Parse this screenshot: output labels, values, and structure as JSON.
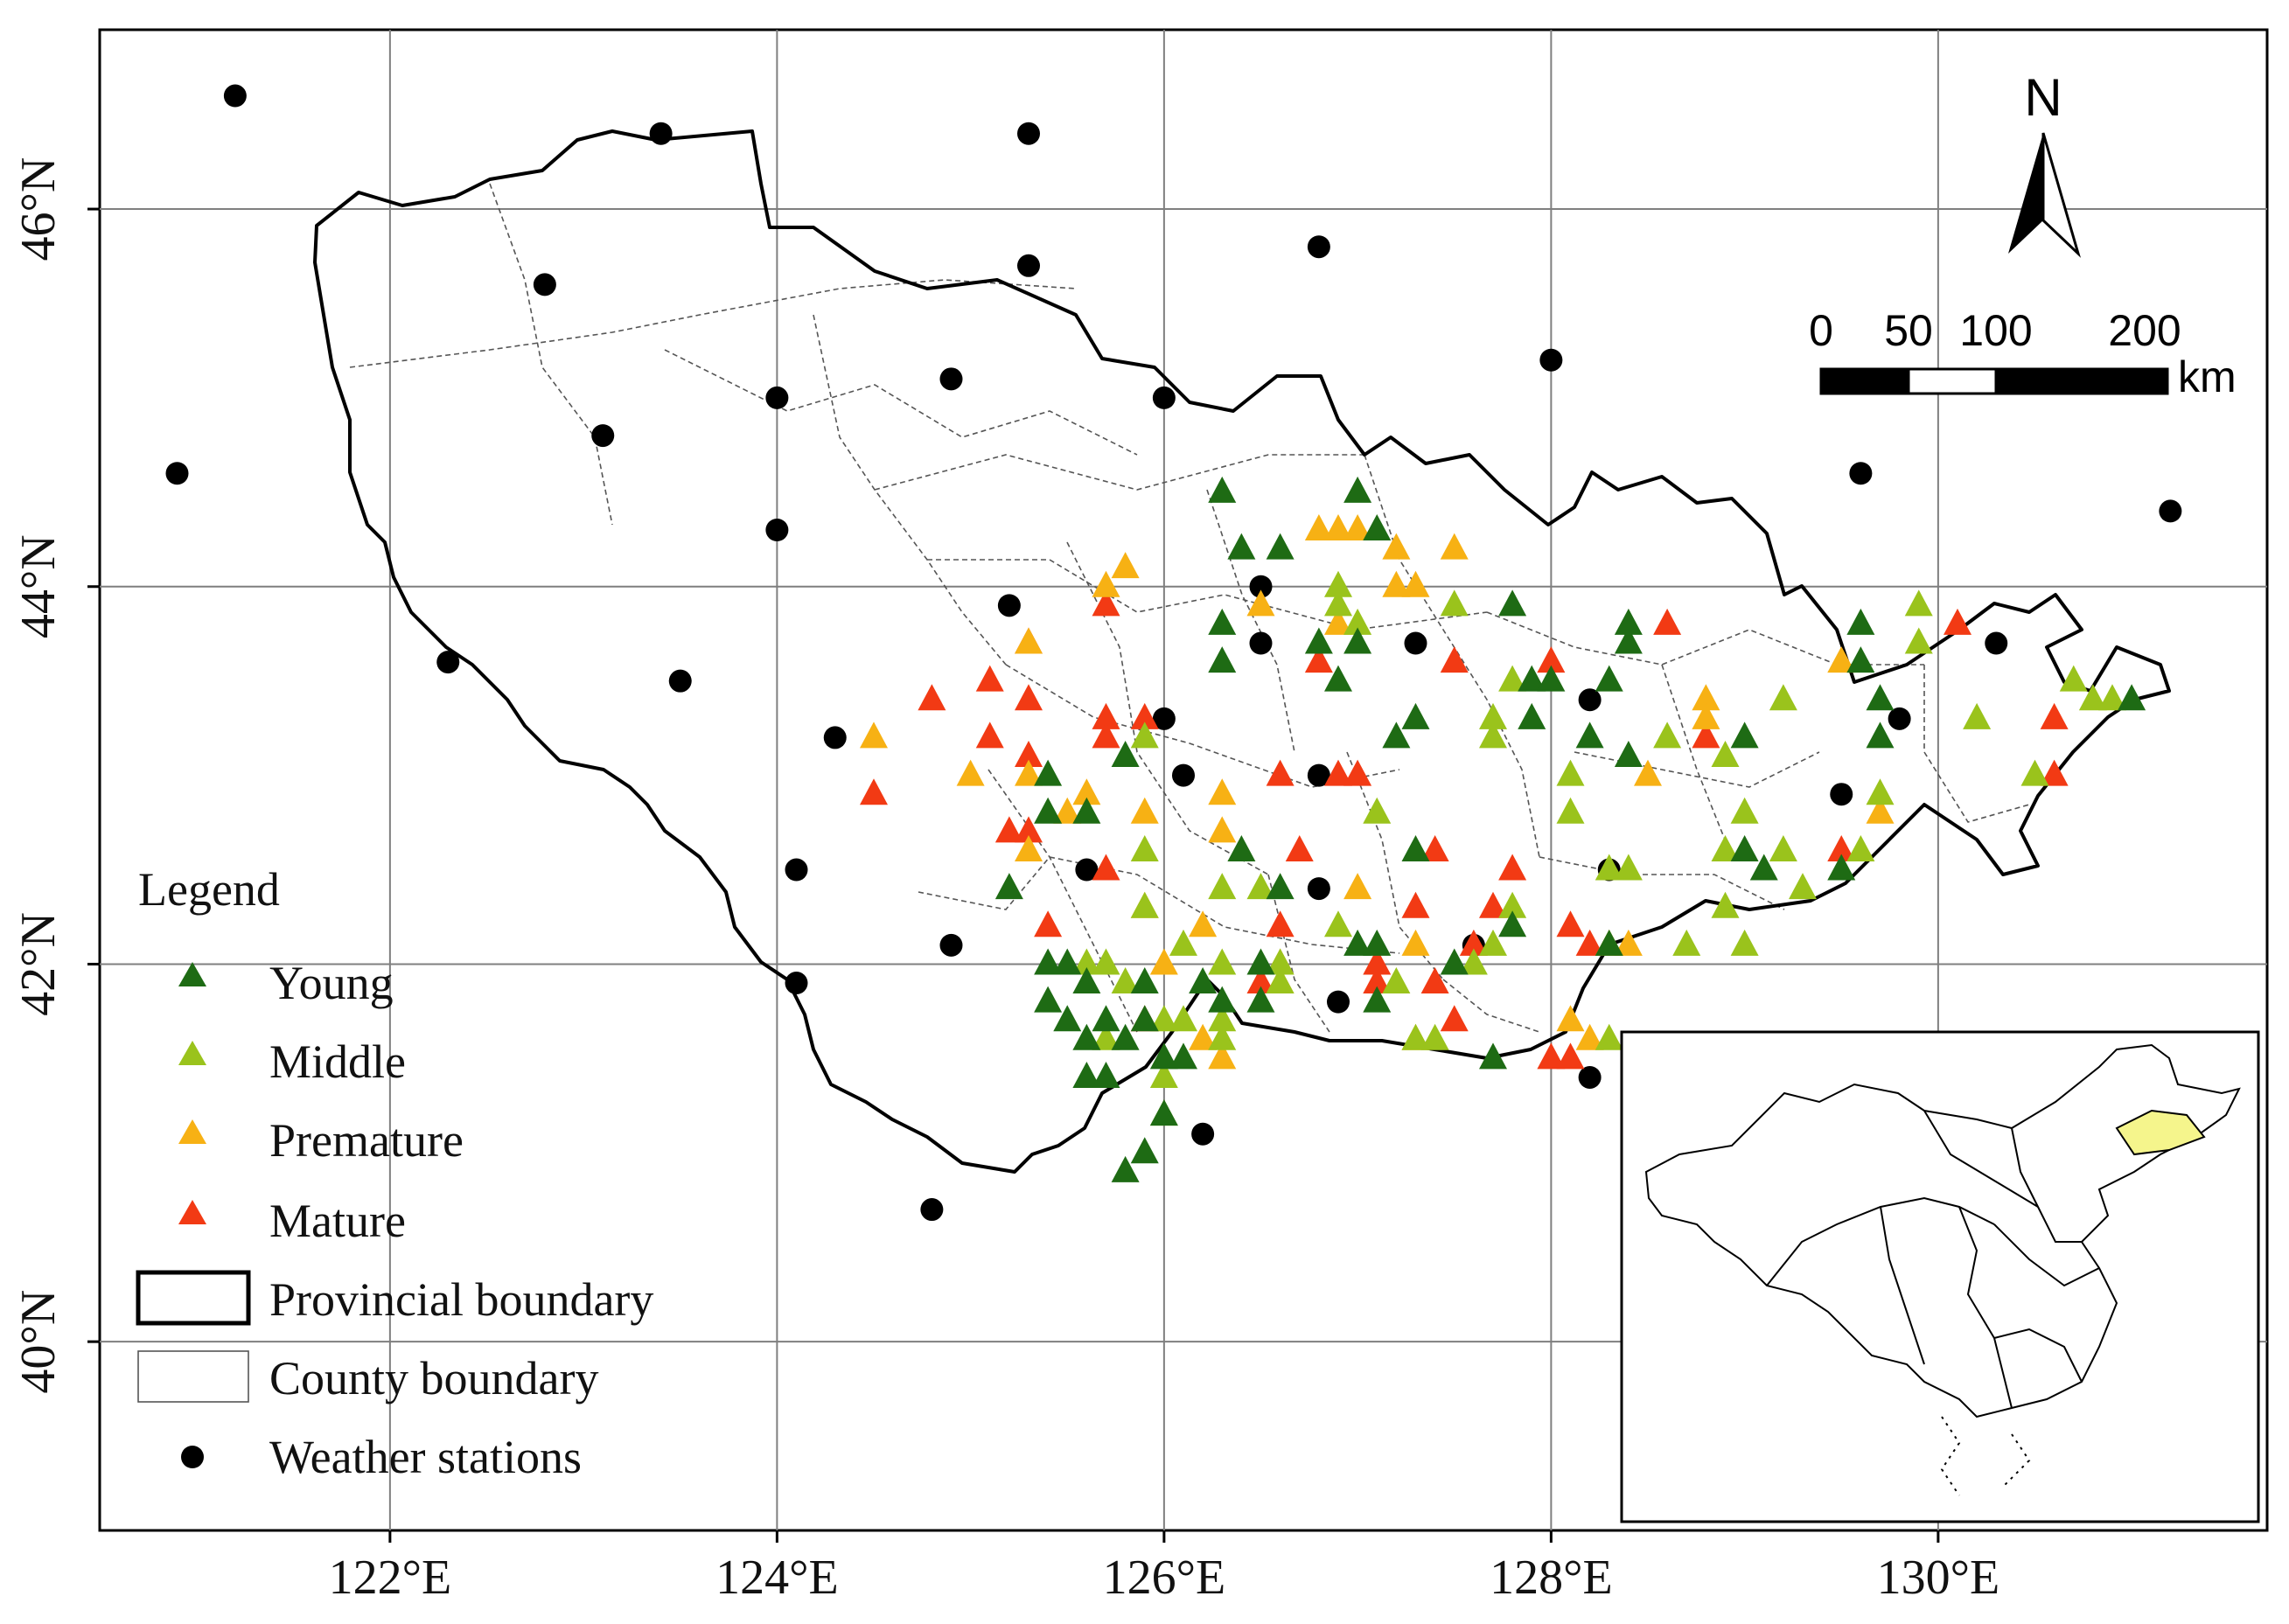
{
  "map": {
    "x_ticks": [
      "122°E",
      "124°E",
      "126°E",
      "128°E",
      "130°E"
    ],
    "y_ticks": [
      "46°N",
      "44°N",
      "42°N",
      "40°N"
    ],
    "lon_values": [
      122,
      124,
      126,
      128,
      130
    ],
    "lat_values": [
      46,
      44,
      42,
      40
    ],
    "lon_range": [
      120.5,
      131.7
    ],
    "lat_range": [
      39.0,
      46.95
    ],
    "grid": true
  },
  "legend": {
    "title": "Legend",
    "items": [
      {
        "label": "Young",
        "symbol": "triangle",
        "color": "#1e6b14"
      },
      {
        "label": "Middle",
        "symbol": "triangle",
        "color": "#9ac31c"
      },
      {
        "label": "Premature",
        "symbol": "triangle",
        "color": "#f7b114"
      },
      {
        "label": "Mature",
        "symbol": "triangle",
        "color": "#f23a14"
      },
      {
        "label": "Provincial boundary",
        "symbol": "thick-rect"
      },
      {
        "label": "County boundary",
        "symbol": "thin-rect"
      },
      {
        "label": "Weather stations",
        "symbol": "dot",
        "color": "#000000"
      }
    ]
  },
  "north_arrow": {
    "label": "N",
    "icon": "north-arrow-icon"
  },
  "scale_bar": {
    "labels": [
      "0",
      "50",
      "100",
      "200"
    ],
    "unit": "km"
  },
  "inset": {
    "icon": "china-outline-icon",
    "highlight_color": "#f5f58c"
  },
  "chart_data": {
    "type": "scatter",
    "title": "",
    "xlabel": "",
    "ylabel": "",
    "xlim": [
      120.5,
      131.7
    ],
    "ylim": [
      39.0,
      46.95
    ],
    "series": [
      {
        "name": "Weather stations",
        "color": "#000000",
        "points": [
          [
            121.2,
            46.6
          ],
          [
            123.4,
            46.4
          ],
          [
            125.3,
            46.4
          ],
          [
            122.8,
            45.6
          ],
          [
            125.3,
            45.7
          ],
          [
            126.8,
            45.8
          ],
          [
            120.9,
            44.6
          ],
          [
            123.1,
            44.8
          ],
          [
            124.0,
            45.0
          ],
          [
            124.9,
            45.1
          ],
          [
            126.0,
            45.0
          ],
          [
            128.0,
            45.2
          ],
          [
            129.6,
            44.6
          ],
          [
            131.2,
            44.4
          ],
          [
            124.0,
            44.3
          ],
          [
            122.3,
            43.6
          ],
          [
            123.5,
            43.5
          ],
          [
            125.2,
            43.9
          ],
          [
            126.5,
            44.0
          ],
          [
            126.5,
            43.7
          ],
          [
            127.3,
            43.7
          ],
          [
            130.3,
            43.7
          ],
          [
            124.3,
            43.2
          ],
          [
            126.0,
            43.3
          ],
          [
            126.1,
            43.0
          ],
          [
            126.8,
            43.0
          ],
          [
            128.2,
            43.4
          ],
          [
            129.8,
            43.3
          ],
          [
            129.5,
            42.9
          ],
          [
            124.1,
            42.5
          ],
          [
            125.6,
            42.5
          ],
          [
            126.8,
            42.4
          ],
          [
            128.3,
            42.5
          ],
          [
            124.9,
            42.1
          ],
          [
            127.6,
            42.1
          ],
          [
            124.1,
            41.9
          ],
          [
            126.9,
            41.8
          ],
          [
            128.2,
            41.4
          ],
          [
            126.2,
            41.1
          ],
          [
            124.8,
            40.7
          ]
        ]
      },
      {
        "name": "Young",
        "color": "#1e6b14",
        "points": [
          [
            126.3,
            44.5
          ],
          [
            127.0,
            44.5
          ],
          [
            127.1,
            44.3
          ],
          [
            126.4,
            44.2
          ],
          [
            126.6,
            44.2
          ],
          [
            126.3,
            43.8
          ],
          [
            126.3,
            43.6
          ],
          [
            126.8,
            43.7
          ],
          [
            127.0,
            43.7
          ],
          [
            127.8,
            43.9
          ],
          [
            126.9,
            43.5
          ],
          [
            127.3,
            43.3
          ],
          [
            127.2,
            43.2
          ],
          [
            128.4,
            43.8
          ],
          [
            128.4,
            43.7
          ],
          [
            128.3,
            43.5
          ],
          [
            128.2,
            43.2
          ],
          [
            128.4,
            43.1
          ],
          [
            127.9,
            43.5
          ],
          [
            127.9,
            43.3
          ],
          [
            128.0,
            43.5
          ],
          [
            129.7,
            43.2
          ],
          [
            129.6,
            43.8
          ],
          [
            129.6,
            43.6
          ],
          [
            129.7,
            43.4
          ],
          [
            129.0,
            43.2
          ],
          [
            131.0,
            43.4
          ],
          [
            125.2,
            42.4
          ],
          [
            125.4,
            42.0
          ],
          [
            125.5,
            42.0
          ],
          [
            125.6,
            41.9
          ],
          [
            125.4,
            41.8
          ],
          [
            125.5,
            41.7
          ],
          [
            125.6,
            41.6
          ],
          [
            125.7,
            41.7
          ],
          [
            125.9,
            41.9
          ],
          [
            125.9,
            41.7
          ],
          [
            125.8,
            41.6
          ],
          [
            126.0,
            41.5
          ],
          [
            126.1,
            41.5
          ],
          [
            125.6,
            41.4
          ],
          [
            125.7,
            41.4
          ],
          [
            126.0,
            41.2
          ],
          [
            125.9,
            41.0
          ],
          [
            125.8,
            40.9
          ],
          [
            126.3,
            41.8
          ],
          [
            126.5,
            42.0
          ],
          [
            126.5,
            41.8
          ],
          [
            127.0,
            42.1
          ],
          [
            127.1,
            42.1
          ],
          [
            127.1,
            41.8
          ],
          [
            126.4,
            42.6
          ],
          [
            126.6,
            42.4
          ],
          [
            125.8,
            43.1
          ],
          [
            125.6,
            42.8
          ],
          [
            125.4,
            42.8
          ],
          [
            125.4,
            43.0
          ],
          [
            127.3,
            42.6
          ],
          [
            127.7,
            41.5
          ],
          [
            128.3,
            42.1
          ],
          [
            129.0,
            42.6
          ],
          [
            129.1,
            42.5
          ],
          [
            129.5,
            42.5
          ],
          [
            126.2,
            41.9
          ],
          [
            127.5,
            42.0
          ],
          [
            127.8,
            42.2
          ]
        ]
      },
      {
        "name": "Middle",
        "color": "#9ac31c",
        "points": [
          [
            126.9,
            43.9
          ],
          [
            127.0,
            43.8
          ],
          [
            127.5,
            43.9
          ],
          [
            126.9,
            44.0
          ],
          [
            127.7,
            43.3
          ],
          [
            127.7,
            43.2
          ],
          [
            127.8,
            43.5
          ],
          [
            128.1,
            43.0
          ],
          [
            128.1,
            42.8
          ],
          [
            128.3,
            42.5
          ],
          [
            128.4,
            42.5
          ],
          [
            128.6,
            43.2
          ],
          [
            128.9,
            43.1
          ],
          [
            129.0,
            42.8
          ],
          [
            128.9,
            42.6
          ],
          [
            128.9,
            42.3
          ],
          [
            128.7,
            42.1
          ],
          [
            129.0,
            42.1
          ],
          [
            129.2,
            42.6
          ],
          [
            129.3,
            42.4
          ],
          [
            129.2,
            43.4
          ],
          [
            129.7,
            42.9
          ],
          [
            129.6,
            42.6
          ],
          [
            130.2,
            43.3
          ],
          [
            129.9,
            43.9
          ],
          [
            129.9,
            43.7
          ],
          [
            130.7,
            43.5
          ],
          [
            130.8,
            43.4
          ],
          [
            130.9,
            43.4
          ],
          [
            130.5,
            43.0
          ],
          [
            125.9,
            42.6
          ],
          [
            125.9,
            42.3
          ],
          [
            126.3,
            42.4
          ],
          [
            126.5,
            42.4
          ],
          [
            126.1,
            42.1
          ],
          [
            126.3,
            42.0
          ],
          [
            126.6,
            42.0
          ],
          [
            126.6,
            41.9
          ],
          [
            125.6,
            42.0
          ],
          [
            125.7,
            42.0
          ],
          [
            125.8,
            41.9
          ],
          [
            125.7,
            41.6
          ],
          [
            126.0,
            41.7
          ],
          [
            126.1,
            41.7
          ],
          [
            126.0,
            41.4
          ],
          [
            126.0,
            41.2
          ],
          [
            126.3,
            41.6
          ],
          [
            126.3,
            41.7
          ],
          [
            126.9,
            42.2
          ],
          [
            127.2,
            41.9
          ],
          [
            127.3,
            41.6
          ],
          [
            127.4,
            41.6
          ],
          [
            127.6,
            42.0
          ],
          [
            127.7,
            42.1
          ],
          [
            127.8,
            42.3
          ],
          [
            128.3,
            41.6
          ],
          [
            127.1,
            42.8
          ],
          [
            125.9,
            43.2
          ]
        ]
      },
      {
        "name": "Premature",
        "color": "#f7b114",
        "points": [
          [
            125.8,
            44.1
          ],
          [
            125.7,
            44.0
          ],
          [
            126.5,
            43.9
          ],
          [
            126.8,
            44.3
          ],
          [
            126.9,
            44.3
          ],
          [
            127.0,
            44.3
          ],
          [
            127.2,
            44.2
          ],
          [
            127.5,
            44.2
          ],
          [
            127.2,
            44.0
          ],
          [
            127.3,
            44.0
          ],
          [
            126.9,
            43.8
          ],
          [
            125.3,
            43.7
          ],
          [
            124.5,
            43.2
          ],
          [
            125.0,
            43.0
          ],
          [
            125.3,
            43.0
          ],
          [
            125.5,
            42.8
          ],
          [
            125.6,
            42.9
          ],
          [
            125.9,
            42.8
          ],
          [
            126.3,
            42.9
          ],
          [
            126.3,
            42.7
          ],
          [
            125.3,
            42.6
          ],
          [
            125.9,
            42.3
          ],
          [
            126.2,
            42.2
          ],
          [
            126.6,
            42.0
          ],
          [
            126.0,
            42.0
          ],
          [
            126.2,
            41.6
          ],
          [
            126.3,
            41.5
          ],
          [
            126.6,
            41.9
          ],
          [
            127.3,
            42.1
          ],
          [
            127.3,
            41.6
          ],
          [
            127.0,
            42.4
          ],
          [
            128.5,
            43.0
          ],
          [
            128.8,
            43.4
          ],
          [
            128.8,
            43.3
          ],
          [
            129.5,
            43.6
          ],
          [
            129.7,
            42.8
          ],
          [
            128.3,
            42.1
          ],
          [
            128.4,
            42.1
          ],
          [
            128.1,
            41.7
          ],
          [
            128.2,
            41.6
          ]
        ]
      },
      {
        "name": "Mature",
        "color": "#f23a14",
        "points": [
          [
            125.7,
            43.9
          ],
          [
            125.3,
            43.7
          ],
          [
            125.1,
            43.5
          ],
          [
            125.3,
            43.4
          ],
          [
            124.8,
            43.4
          ],
          [
            125.1,
            43.2
          ],
          [
            125.3,
            43.1
          ],
          [
            125.7,
            43.3
          ],
          [
            125.7,
            43.2
          ],
          [
            125.9,
            43.3
          ],
          [
            124.5,
            42.9
          ],
          [
            125.2,
            42.7
          ],
          [
            125.3,
            42.7
          ],
          [
            125.4,
            42.2
          ],
          [
            125.7,
            42.5
          ],
          [
            125.9,
            41.7
          ],
          [
            126.5,
            41.9
          ],
          [
            126.7,
            42.6
          ],
          [
            126.6,
            42.2
          ],
          [
            126.8,
            43.6
          ],
          [
            126.6,
            43.0
          ],
          [
            126.9,
            43.0
          ],
          [
            127.0,
            43.0
          ],
          [
            127.1,
            42.0
          ],
          [
            127.1,
            41.9
          ],
          [
            127.3,
            42.3
          ],
          [
            127.4,
            41.9
          ],
          [
            127.5,
            41.7
          ],
          [
            127.5,
            43.6
          ],
          [
            127.8,
            42.5
          ],
          [
            127.7,
            42.3
          ],
          [
            127.6,
            42.1
          ],
          [
            127.4,
            42.6
          ],
          [
            128.0,
            43.6
          ],
          [
            128.1,
            42.2
          ],
          [
            128.2,
            42.1
          ],
          [
            128.0,
            41.5
          ],
          [
            128.1,
            41.5
          ],
          [
            128.6,
            43.8
          ],
          [
            128.8,
            43.2
          ],
          [
            130.1,
            43.8
          ],
          [
            129.5,
            42.6
          ],
          [
            130.6,
            43.3
          ],
          [
            130.6,
            43.0
          ]
        ]
      }
    ]
  }
}
